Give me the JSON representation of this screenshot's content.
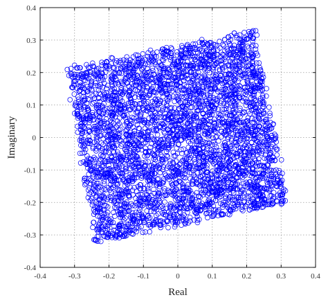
{
  "chart_data": {
    "type": "scatter",
    "title": "",
    "xlabel": "Real",
    "ylabel": "Imaginary",
    "xlim": [
      -0.4,
      0.4
    ],
    "ylim": [
      -0.4,
      0.4
    ],
    "xticks": [
      "-0.4",
      "-0.3",
      "-0.2",
      "-0.1",
      "0",
      "0.1",
      "0.2",
      "0.3",
      "0.4"
    ],
    "yticks": [
      "-0.4",
      "-0.3",
      "-0.2",
      "-0.1",
      "0",
      "0.1",
      "0.2",
      "0.3",
      "0.4"
    ],
    "grid": true,
    "marker": "open-circle",
    "marker_color": "#0000ff",
    "point_count": 4000,
    "seed": 7,
    "region": {
      "shape": "quadrilateral",
      "corners": [
        [
          -0.32,
          0.21
        ],
        [
          0.22,
          0.33
        ],
        [
          0.32,
          -0.2
        ],
        [
          -0.24,
          -0.32
        ]
      ]
    },
    "points": []
  }
}
